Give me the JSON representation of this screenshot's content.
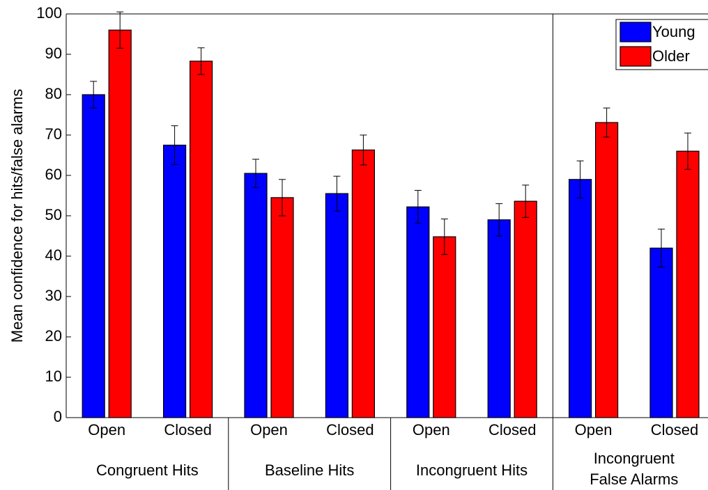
{
  "chart_data": {
    "type": "bar",
    "y_label": "Mean confidence for hits/false alarms",
    "categories": [
      "Open",
      "Closed",
      "Open",
      "Closed",
      "Open",
      "Closed",
      "Open",
      "Closed"
    ],
    "groups": [
      {
        "lines": [
          "Congruent Hits"
        ]
      },
      {
        "lines": [
          "Baseline Hits"
        ]
      },
      {
        "lines": [
          "Incongruent Hits"
        ]
      },
      {
        "lines": [
          "Incongruent",
          "False Alarms"
        ]
      }
    ],
    "series": [
      {
        "name": "Young",
        "color": "#0000ff",
        "values": [
          80,
          67.5,
          60.5,
          55.5,
          52.2,
          49,
          59,
          42
        ],
        "errors": [
          3.3,
          4.8,
          3.5,
          4.3,
          4.1,
          4,
          4.6,
          4.7
        ]
      },
      {
        "name": "Older",
        "color": "#ff0000",
        "values": [
          96,
          88.3,
          54.5,
          66.3,
          44.8,
          53.6,
          73.1,
          66
        ],
        "errors": [
          4.5,
          3.3,
          4.5,
          3.7,
          4.4,
          4,
          3.6,
          4.5
        ]
      }
    ],
    "ylim": [
      0,
      100
    ],
    "yticks": [
      0,
      10,
      20,
      30,
      40,
      50,
      60,
      70,
      80,
      90,
      100
    ],
    "legend": "top-right",
    "grid": false
  }
}
